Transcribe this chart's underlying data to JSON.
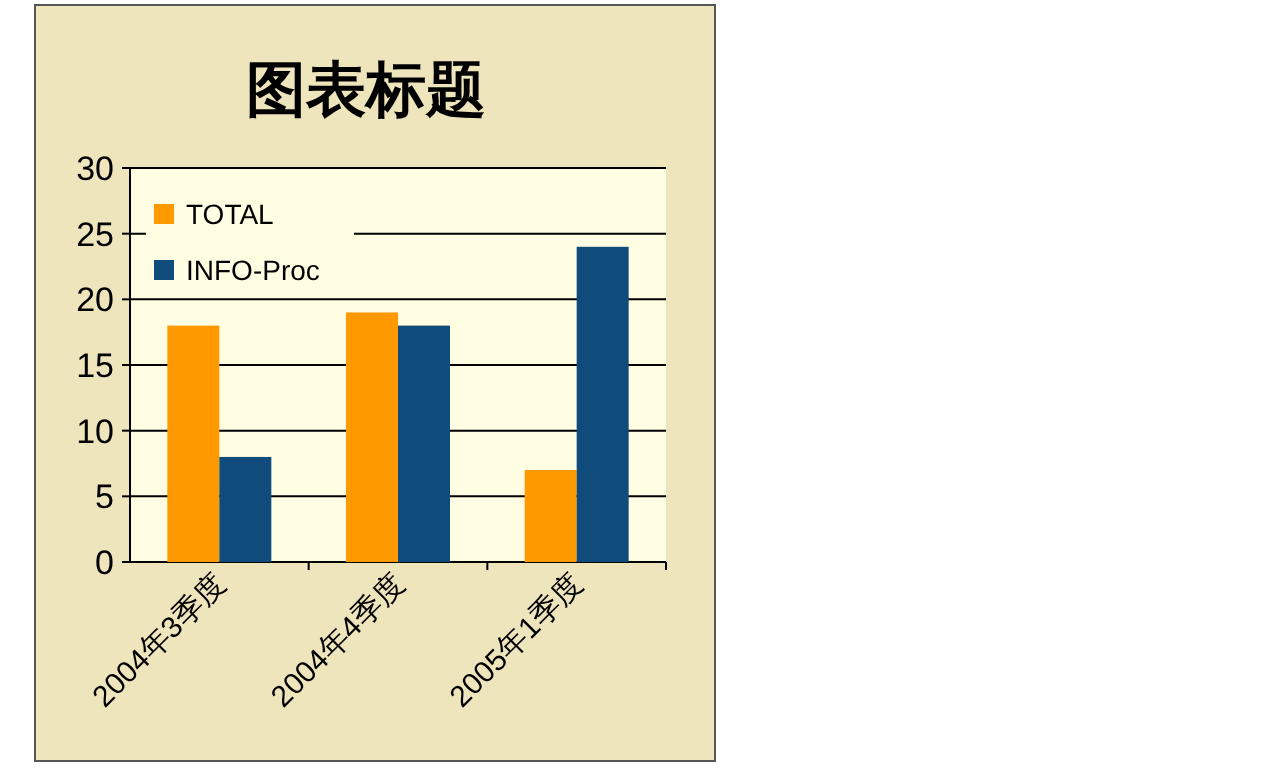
{
  "chart_data": {
    "type": "bar",
    "title": "图表标题",
    "categories": [
      "2004年3季度",
      "2004年4季度",
      "2005年1季度"
    ],
    "series": [
      {
        "name": "TOTAL",
        "color": "#ff9900",
        "values": [
          18,
          19,
          7
        ]
      },
      {
        "name": "INFO-Proc",
        "color": "#0f4c7c",
        "values": [
          8,
          18,
          24
        ]
      }
    ],
    "ylim": [
      0,
      30
    ],
    "yticks": [
      0,
      5,
      10,
      15,
      20,
      25,
      30
    ],
    "grid": "y",
    "legend": "top left"
  }
}
